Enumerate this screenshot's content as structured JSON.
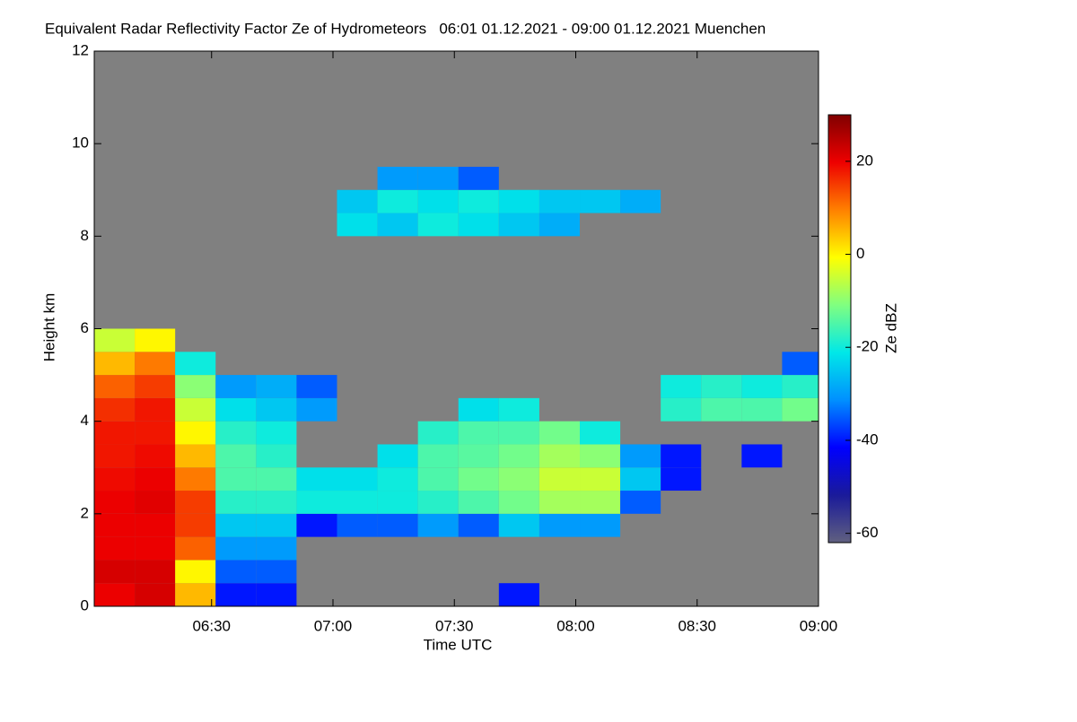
{
  "chart_data": {
    "type": "heatmap",
    "title": "Equivalent Radar Reflectivity Factor Ze of Hydrometeors   06:01 01.12.2021 - 09:00 01.12.2021 Muenchen",
    "x_label": "Time UTC",
    "y_label": "Height km",
    "colorbar_label": "Ze dBZ",
    "x": [
      "06:06",
      "06:16",
      "06:26",
      "06:36",
      "06:46",
      "06:56",
      "07:06",
      "07:16",
      "07:26",
      "07:36",
      "07:46",
      "07:56",
      "08:06",
      "08:16",
      "08:26",
      "08:36",
      "08:46",
      "08:56"
    ],
    "y": [
      0.25,
      0.75,
      1.25,
      1.75,
      2.25,
      2.75,
      3.25,
      3.75,
      4.25,
      4.75,
      5.25,
      5.75,
      6.25,
      6.75,
      7.25,
      7.75,
      8.25,
      8.75,
      9.25,
      9.75
    ],
    "z": [
      [
        20,
        22,
        5,
        -40,
        -40,
        null,
        null,
        null,
        null,
        null,
        -40,
        null,
        null,
        null,
        null,
        null,
        null,
        null
      ],
      [
        22,
        22,
        0,
        -35,
        -35,
        null,
        null,
        null,
        null,
        null,
        null,
        null,
        null,
        null,
        null,
        null,
        null,
        null
      ],
      [
        20,
        20,
        12,
        -30,
        -30,
        null,
        null,
        null,
        null,
        null,
        null,
        null,
        null,
        null,
        null,
        null,
        null,
        null
      ],
      [
        20,
        20,
        15,
        -25,
        -25,
        -40,
        -35,
        -35,
        -30,
        -35,
        -25,
        -30,
        -30,
        null,
        null,
        null,
        null,
        null
      ],
      [
        20,
        21,
        15,
        -18,
        -18,
        -20,
        -20,
        -20,
        -18,
        -15,
        -12,
        -8,
        -8,
        -35,
        null,
        null,
        null,
        null
      ],
      [
        19,
        20,
        10,
        -15,
        -15,
        -22,
        -22,
        -20,
        -15,
        -12,
        -10,
        -5,
        -5,
        -25,
        -40,
        null,
        null,
        null
      ],
      [
        18,
        19,
        5,
        -15,
        -18,
        null,
        null,
        -22,
        -15,
        -14,
        -12,
        -8,
        -10,
        -30,
        -40,
        null,
        -40,
        null
      ],
      [
        18,
        18,
        0,
        -18,
        -20,
        null,
        null,
        null,
        -18,
        -15,
        -15,
        -12,
        -20,
        null,
        null,
        null,
        null,
        null
      ],
      [
        16,
        18,
        -5,
        -22,
        -25,
        -30,
        null,
        null,
        null,
        -22,
        -20,
        null,
        null,
        null,
        -18,
        -15,
        -15,
        -12
      ],
      [
        12,
        15,
        -10,
        -30,
        -28,
        -35,
        null,
        null,
        null,
        null,
        null,
        null,
        null,
        null,
        -20,
        -18,
        -20,
        -18
      ],
      [
        5,
        10,
        -20,
        null,
        null,
        null,
        null,
        null,
        null,
        null,
        null,
        null,
        null,
        null,
        null,
        null,
        null,
        -35
      ],
      [
        -5,
        0,
        null,
        null,
        null,
        null,
        null,
        null,
        null,
        null,
        null,
        null,
        null,
        null,
        null,
        null,
        null,
        null
      ],
      [
        null,
        null,
        null,
        null,
        null,
        null,
        null,
        null,
        null,
        null,
        null,
        null,
        null,
        null,
        null,
        null,
        null,
        null
      ],
      [
        null,
        null,
        null,
        null,
        null,
        null,
        null,
        null,
        null,
        null,
        null,
        null,
        null,
        null,
        null,
        null,
        null,
        null
      ],
      [
        null,
        null,
        null,
        null,
        null,
        null,
        null,
        null,
        null,
        null,
        null,
        null,
        null,
        null,
        null,
        null,
        null,
        null
      ],
      [
        null,
        null,
        null,
        null,
        null,
        null,
        null,
        null,
        null,
        null,
        null,
        null,
        null,
        null,
        null,
        null,
        null,
        null
      ],
      [
        null,
        null,
        null,
        null,
        null,
        null,
        -22,
        -25,
        -20,
        -22,
        -25,
        -28,
        null,
        null,
        null,
        null,
        null,
        null
      ],
      [
        null,
        null,
        null,
        null,
        null,
        null,
        -25,
        -20,
        -22,
        -20,
        -22,
        -25,
        -25,
        -28,
        null,
        null,
        null,
        null
      ],
      [
        null,
        null,
        null,
        null,
        null,
        null,
        null,
        -30,
        -30,
        -35,
        null,
        null,
        null,
        null,
        null,
        null,
        null,
        null
      ],
      [
        null,
        null,
        null,
        null,
        null,
        null,
        null,
        null,
        null,
        null,
        null,
        null,
        null,
        null,
        null,
        null,
        null,
        null
      ]
    ],
    "xlim": [
      "06:01",
      "09:00"
    ],
    "xticks": [
      "06:30",
      "07:00",
      "07:30",
      "08:00",
      "08:30",
      "09:00"
    ],
    "ylim": [
      0,
      12
    ],
    "yticks": [
      0,
      2,
      4,
      6,
      8,
      10,
      12
    ],
    "zlim": [
      -62,
      30
    ],
    "zticks": [
      -60,
      -40,
      -20,
      0,
      20
    ],
    "colorscale": [
      "#606080",
      "#1a1a9a",
      "#0000ff",
      "#0090ff",
      "#00e8e8",
      "#80ff80",
      "#ffff00",
      "#ff8000",
      "#ee0000",
      "#800000"
    ],
    "background": "#808080"
  }
}
